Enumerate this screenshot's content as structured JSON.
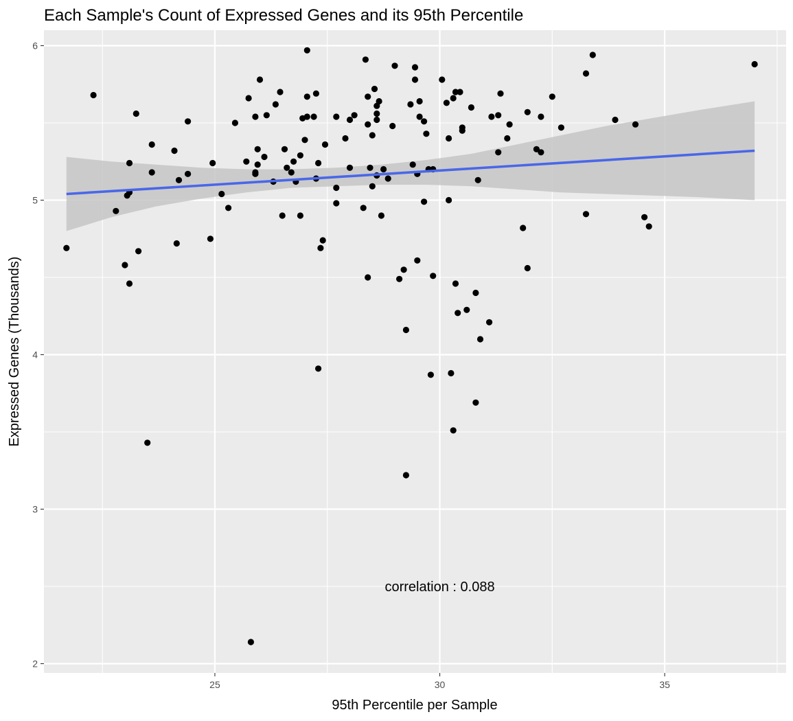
{
  "chart_data": {
    "type": "scatter",
    "title": "Each Sample's Count of Expressed Genes and its 95th Percentile",
    "xlabel": "95th Percentile per Sample",
    "ylabel": "Expressed Genes (Thousands)",
    "xlim": [
      21.2,
      37.7
    ],
    "ylim": [
      1.94,
      6.1
    ],
    "x_ticks": [
      25,
      30,
      35
    ],
    "y_ticks": [
      2,
      3,
      4,
      5,
      6
    ],
    "x_tick_labels": [
      "25",
      "30",
      "35"
    ],
    "y_tick_labels": [
      "2",
      "3",
      "4",
      "5",
      "6"
    ],
    "grid": true,
    "colors": {
      "panel": "#ebebeb",
      "grid": "#ffffff",
      "point": "#000000",
      "fit_line": "#4a67e8",
      "confidence_band": "#c6c6c6"
    },
    "annotation": {
      "text": "correlation : 0.088",
      "x": 30,
      "y": 2.5
    },
    "fit": {
      "x": [
        21.7,
        37.0
      ],
      "y": [
        5.04,
        5.32
      ],
      "band_x": [
        21.7,
        22.7,
        23.7,
        24.7,
        25.7,
        26.7,
        27.7,
        28.7,
        29.7,
        30.7,
        31.7,
        32.7,
        33.7,
        34.7,
        35.7,
        37.0
      ],
      "band_lower": [
        4.8,
        4.89,
        4.96,
        5.01,
        5.05,
        5.08,
        5.09,
        5.1,
        5.1,
        5.09,
        5.07,
        5.05,
        5.04,
        5.03,
        5.02,
        5.0
      ],
      "band_upper": [
        5.28,
        5.25,
        5.23,
        5.21,
        5.2,
        5.2,
        5.21,
        5.23,
        5.26,
        5.3,
        5.36,
        5.42,
        5.48,
        5.53,
        5.58,
        5.64
      ]
    },
    "points": [
      [
        21.7,
        4.69
      ],
      [
        22.3,
        5.68
      ],
      [
        22.8,
        4.93
      ],
      [
        23.0,
        4.58
      ],
      [
        23.05,
        5.03
      ],
      [
        23.1,
        4.46
      ],
      [
        23.1,
        5.05
      ],
      [
        23.1,
        5.24
      ],
      [
        23.25,
        5.56
      ],
      [
        23.3,
        4.67
      ],
      [
        23.5,
        3.43
      ],
      [
        23.6,
        5.18
      ],
      [
        23.6,
        5.36
      ],
      [
        24.1,
        5.32
      ],
      [
        24.15,
        4.72
      ],
      [
        24.2,
        5.13
      ],
      [
        24.4,
        5.51
      ],
      [
        24.4,
        5.17
      ],
      [
        24.9,
        4.75
      ],
      [
        24.95,
        5.24
      ],
      [
        25.15,
        5.04
      ],
      [
        25.3,
        4.95
      ],
      [
        25.45,
        5.5
      ],
      [
        25.7,
        5.25
      ],
      [
        25.75,
        5.66
      ],
      [
        25.8,
        2.14
      ],
      [
        25.9,
        5.17
      ],
      [
        25.9,
        5.18
      ],
      [
        25.9,
        5.54
      ],
      [
        25.95,
        5.23
      ],
      [
        25.95,
        5.33
      ],
      [
        26.0,
        5.78
      ],
      [
        26.1,
        5.28
      ],
      [
        26.15,
        5.55
      ],
      [
        26.3,
        5.12
      ],
      [
        26.35,
        5.62
      ],
      [
        26.45,
        5.7
      ],
      [
        26.5,
        4.9
      ],
      [
        26.55,
        5.33
      ],
      [
        26.6,
        5.21
      ],
      [
        26.7,
        5.18
      ],
      [
        26.75,
        5.25
      ],
      [
        26.8,
        5.12
      ],
      [
        26.9,
        5.29
      ],
      [
        26.9,
        4.9
      ],
      [
        26.95,
        5.53
      ],
      [
        27.0,
        5.39
      ],
      [
        27.05,
        5.67
      ],
      [
        27.05,
        5.54
      ],
      [
        27.05,
        5.97
      ],
      [
        27.2,
        5.54
      ],
      [
        27.25,
        5.69
      ],
      [
        27.25,
        5.14
      ],
      [
        27.3,
        3.91
      ],
      [
        27.3,
        5.24
      ],
      [
        27.35,
        4.69
      ],
      [
        27.4,
        4.74
      ],
      [
        27.45,
        5.36
      ],
      [
        27.7,
        5.54
      ],
      [
        27.7,
        5.08
      ],
      [
        27.7,
        4.98
      ],
      [
        27.9,
        5.4
      ],
      [
        28.0,
        5.52
      ],
      [
        28.0,
        5.21
      ],
      [
        28.1,
        5.55
      ],
      [
        28.3,
        4.95
      ],
      [
        28.35,
        5.91
      ],
      [
        28.4,
        5.67
      ],
      [
        28.4,
        5.49
      ],
      [
        28.4,
        4.5
      ],
      [
        28.45,
        5.21
      ],
      [
        28.5,
        5.09
      ],
      [
        28.5,
        5.42
      ],
      [
        28.55,
        5.72
      ],
      [
        28.6,
        5.61
      ],
      [
        28.6,
        5.52
      ],
      [
        28.6,
        5.16
      ],
      [
        28.6,
        5.56
      ],
      [
        28.65,
        5.64
      ],
      [
        28.7,
        4.9
      ],
      [
        28.75,
        5.2
      ],
      [
        28.85,
        5.14
      ],
      [
        28.95,
        5.48
      ],
      [
        29.0,
        5.87
      ],
      [
        29.1,
        4.49
      ],
      [
        29.2,
        4.55
      ],
      [
        29.25,
        4.16
      ],
      [
        29.25,
        3.22
      ],
      [
        29.35,
        5.62
      ],
      [
        29.4,
        5.23
      ],
      [
        29.45,
        5.86
      ],
      [
        29.45,
        5.78
      ],
      [
        29.5,
        5.17
      ],
      [
        29.5,
        4.61
      ],
      [
        29.55,
        5.64
      ],
      [
        29.55,
        5.54
      ],
      [
        29.65,
        4.99
      ],
      [
        29.65,
        5.51
      ],
      [
        29.7,
        5.43
      ],
      [
        29.75,
        5.2
      ],
      [
        29.8,
        3.87
      ],
      [
        29.85,
        5.2
      ],
      [
        29.85,
        4.51
      ],
      [
        30.05,
        5.78
      ],
      [
        30.15,
        5.63
      ],
      [
        30.2,
        5.4
      ],
      [
        30.2,
        5.0
      ],
      [
        30.25,
        3.88
      ],
      [
        30.3,
        3.51
      ],
      [
        30.3,
        5.66
      ],
      [
        30.35,
        4.46
      ],
      [
        30.35,
        5.7
      ],
      [
        30.4,
        4.27
      ],
      [
        30.45,
        5.7
      ],
      [
        30.5,
        5.47
      ],
      [
        30.5,
        5.45
      ],
      [
        30.6,
        4.29
      ],
      [
        30.7,
        5.6
      ],
      [
        30.8,
        3.69
      ],
      [
        30.8,
        4.4
      ],
      [
        30.85,
        5.13
      ],
      [
        30.9,
        4.1
      ],
      [
        31.1,
        4.21
      ],
      [
        31.15,
        5.54
      ],
      [
        31.3,
        5.55
      ],
      [
        31.3,
        5.31
      ],
      [
        31.35,
        5.69
      ],
      [
        31.5,
        5.4
      ],
      [
        31.55,
        5.49
      ],
      [
        31.85,
        4.82
      ],
      [
        31.95,
        5.57
      ],
      [
        31.95,
        4.56
      ],
      [
        32.15,
        5.33
      ],
      [
        32.25,
        5.54
      ],
      [
        32.25,
        5.31
      ],
      [
        32.5,
        5.67
      ],
      [
        32.7,
        5.47
      ],
      [
        33.25,
        5.82
      ],
      [
        33.25,
        4.91
      ],
      [
        33.4,
        5.94
      ],
      [
        33.9,
        5.52
      ],
      [
        34.35,
        5.49
      ],
      [
        34.55,
        4.89
      ],
      [
        34.65,
        4.83
      ],
      [
        37.0,
        5.88
      ]
    ]
  }
}
